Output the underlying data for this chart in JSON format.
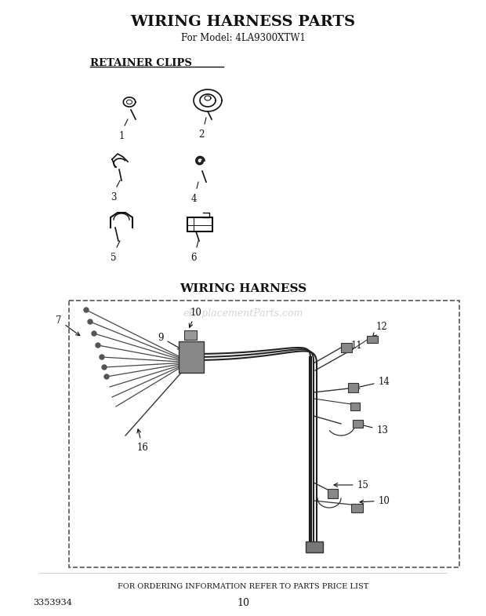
{
  "title": "WIRING HARNESS PARTS",
  "subtitle": "For Model: 4LA9300XTW1",
  "retainer_clips_label": "RETAINER CLIPS",
  "wiring_harness_label": "WIRING HARNESS",
  "footer_text": "FOR ORDERING INFORMATION REFER TO PARTS PRICE LIST",
  "part_number": "3353934",
  "page_number": "10",
  "watermark": "eReplacementParts.com",
  "bg_color": "#ffffff",
  "text_color": "#111111",
  "border_color": "#444444"
}
